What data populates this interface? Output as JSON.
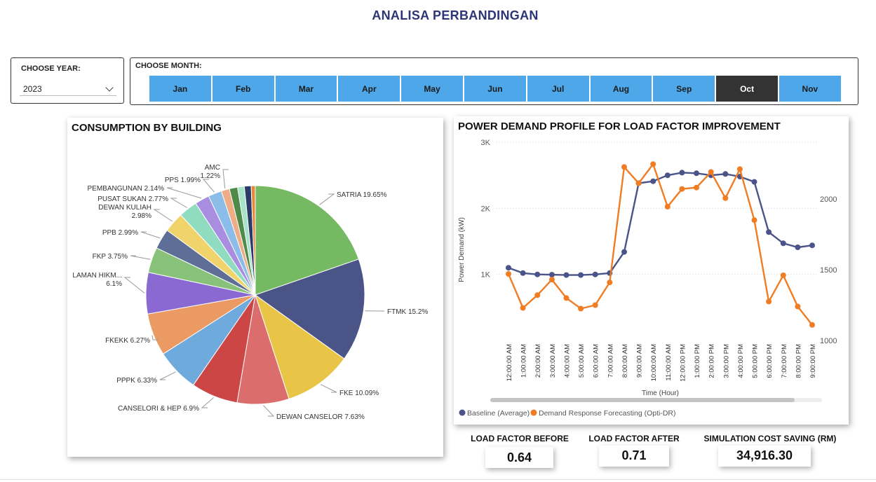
{
  "page_title": "ANALISA PERBANDINGAN",
  "year_filter": {
    "label": "CHOOSE YEAR:",
    "value": "2023"
  },
  "month_filter": {
    "label": "CHOOSE MONTH:",
    "months": [
      "Jan",
      "Feb",
      "Mar",
      "Apr",
      "May",
      "Jun",
      "Jul",
      "Aug",
      "Sep",
      "Oct",
      "Nov"
    ],
    "selected": "Oct"
  },
  "colors": {
    "accent": "#4ea7e8",
    "selected": "#333333",
    "title": "#2c3575",
    "baseline": "#4a5488",
    "forecast": "#f07c23"
  },
  "kpis": [
    {
      "label": "LOAD FACTOR BEFORE",
      "value": "0.64"
    },
    {
      "label": "LOAD FACTOR AFTER",
      "value": "0.71"
    },
    {
      "label": "SIMULATION COST SAVING (RM)",
      "value": "34,916.30"
    }
  ],
  "chart_data": [
    {
      "type": "pie",
      "title": "CONSUMPTION BY BUILDING",
      "slices": [
        {
          "label": "SATRIA",
          "value": 19.65,
          "display": "SATRIA 19.65%",
          "color": "#76b963"
        },
        {
          "label": "FTMK",
          "value": 15.2,
          "display": "FTMK 15.2%",
          "color": "#4b5487"
        },
        {
          "label": "FKE",
          "value": 10.09,
          "display": "FKE 10.09%",
          "color": "#e9c547"
        },
        {
          "label": "DEWAN CANSELOR",
          "value": 7.63,
          "display": "DEWAN CANSELOR 7.63%",
          "color": "#db6e6c"
        },
        {
          "label": "CANSELORI & HEP",
          "value": 6.9,
          "display": "CANSELORI & HEP 6.9%",
          "color": "#cc4646"
        },
        {
          "label": "PPPK",
          "value": 6.33,
          "display": "PPPK 6.33%",
          "color": "#6eaadc"
        },
        {
          "label": "FKEKK",
          "value": 6.27,
          "display": "FKEKK 6.27%",
          "color": "#ea9a62"
        },
        {
          "label": "LAMAN HIKM...",
          "value": 6.1,
          "display": [
            "LAMAN HIKM...",
            "6.1%"
          ],
          "color": "#8a6ad2"
        },
        {
          "label": "FKP",
          "value": 3.75,
          "display": "FKP 3.75%",
          "color": "#88c27a"
        },
        {
          "label": "PPB",
          "value": 2.99,
          "display": "PPB 2.99%",
          "color": "#5f6e96"
        },
        {
          "label": "DEWAN KULIAH",
          "value": 2.98,
          "display": [
            "DEWAN KULIAH",
            "2.98%"
          ],
          "color": "#f0d46b"
        },
        {
          "label": "PUSAT SUKAN",
          "value": 2.77,
          "display": "PUSAT SUKAN 2.77%",
          "color": "#8fdcc0"
        },
        {
          "label": "PEMBANGUNAN",
          "value": 2.14,
          "display": "PEMBANGUNAN 2.14%",
          "color": "#a98de0"
        },
        {
          "label": "PPS",
          "value": 1.99,
          "display": "PPS 1.99%",
          "color": "#8cbde8"
        },
        {
          "label": "AMC",
          "value": 1.22,
          "display": [
            "AMC",
            "1.22%"
          ],
          "color": "#efad85"
        },
        {
          "label": "",
          "value": 1.2,
          "display": "",
          "color": "#4f8a4a"
        },
        {
          "label": "",
          "value": 1.0,
          "display": "",
          "color": "#a6e3c8"
        },
        {
          "label": "",
          "value": 1.0,
          "display": "",
          "color": "#2b3a66"
        },
        {
          "label": "",
          "value": 0.6,
          "display": "",
          "color": "#e8883a"
        }
      ]
    },
    {
      "type": "line",
      "title": "POWER DEMAND PROFILE FOR LOAD FACTOR IMPROVEMENT",
      "xlabel": "Time (Hour)",
      "ylabel": "Power Demand (kW)",
      "x": [
        "12:00:00 AM",
        "1:00:00 AM",
        "2:00:00 AM",
        "3:00:00 AM",
        "4:00:00 AM",
        "5:00:00 AM",
        "6:00:00 AM",
        "7:00:00 AM",
        "8:00:00 AM",
        "9:00:00 AM",
        "10:00:00 AM",
        "11:00:00 AM",
        "12:00:00 PM",
        "1:00:00 PM",
        "2:00:00 PM",
        "3:00:00 PM",
        "4:00:00 PM",
        "5:00:00 PM",
        "6:00:00 PM",
        "7:00:00 PM",
        "8:00:00 PM",
        "9:00:00 PM"
      ],
      "y_left": {
        "ticks": [
          "1K",
          "2K",
          "3K"
        ],
        "tick_values": [
          1000,
          2000,
          3000
        ],
        "range": [
          0,
          3000
        ]
      },
      "y_right": {
        "ticks": [
          "1000",
          "1500",
          "2000"
        ],
        "tick_values": [
          1000,
          1500,
          2000
        ],
        "range": [
          1000,
          2400
        ]
      },
      "series": [
        {
          "name": "Baseline (Average)",
          "axis": "left",
          "color": "#4a5488",
          "values": [
            1100,
            1020,
            1000,
            995,
            990,
            990,
            1000,
            1020,
            1340,
            2380,
            2410,
            2500,
            2540,
            2530,
            2500,
            2520,
            2480,
            2400,
            1640,
            1470,
            1410,
            1440
          ]
        },
        {
          "name": "Demand Response Forecasting (Opti-DR)",
          "axis": "right",
          "color": "#f07c23",
          "values": [
            1470,
            1230,
            1320,
            1430,
            1300,
            1225,
            1250,
            1410,
            2225,
            2110,
            2245,
            1945,
            2070,
            2080,
            2190,
            2005,
            2210,
            1850,
            1275,
            1460,
            1240,
            1110
          ]
        }
      ],
      "legend": [
        "Baseline (Average)",
        "Demand Response Forecasting (Opti-DR)"
      ]
    }
  ]
}
